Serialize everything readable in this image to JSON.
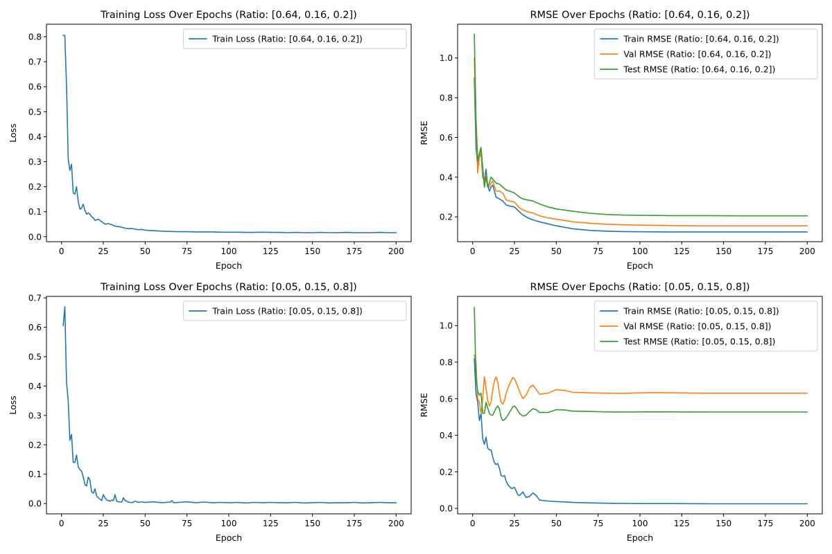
{
  "chart_data": [
    {
      "type": "line",
      "title": "Training Loss Over Epochs (Ratio: [0.64, 0.16, 0.2])",
      "xlabel": "Epoch",
      "ylabel": "Loss",
      "xlim": [
        -9,
        209
      ],
      "ylim": [
        -0.02,
        0.85
      ],
      "xticks": [
        0,
        25,
        50,
        75,
        100,
        125,
        150,
        175,
        200
      ],
      "xtick_labels": [
        "0",
        "25",
        "50",
        "75",
        "100",
        "125",
        "150",
        "175",
        "200"
      ],
      "yticks": [
        0.0,
        0.1,
        0.2,
        0.3,
        0.4,
        0.5,
        0.6,
        0.7,
        0.8
      ],
      "ytick_labels": [
        "0.0",
        "0.1",
        "0.2",
        "0.3",
        "0.4",
        "0.5",
        "0.6",
        "0.7",
        "0.8"
      ],
      "grid": false,
      "legend_position": "upper right",
      "series": [
        {
          "name": "Train Loss (Ratio: [0.64, 0.16, 0.2])",
          "color": "#1f77b4",
          "x": [
            1,
            2,
            3,
            4,
            5,
            6,
            7,
            8,
            9,
            10,
            11,
            12,
            13,
            14,
            15,
            16,
            17,
            18,
            19,
            20,
            22,
            24,
            26,
            28,
            30,
            32,
            34,
            36,
            38,
            40,
            42,
            44,
            46,
            48,
            50,
            55,
            60,
            65,
            70,
            75,
            80,
            85,
            90,
            95,
            100,
            105,
            110,
            115,
            120,
            125,
            130,
            135,
            140,
            145,
            150,
            155,
            160,
            165,
            170,
            175,
            180,
            185,
            190,
            195,
            200
          ],
          "y": [
            0.805,
            0.805,
            0.6,
            0.31,
            0.265,
            0.29,
            0.175,
            0.17,
            0.2,
            0.14,
            0.11,
            0.115,
            0.13,
            0.105,
            0.09,
            0.095,
            0.09,
            0.08,
            0.075,
            0.065,
            0.07,
            0.06,
            0.05,
            0.052,
            0.048,
            0.042,
            0.04,
            0.038,
            0.034,
            0.032,
            0.033,
            0.03,
            0.028,
            0.029,
            0.026,
            0.024,
            0.022,
            0.021,
            0.02,
            0.02,
            0.019,
            0.019,
            0.019,
            0.018,
            0.018,
            0.018,
            0.017,
            0.017,
            0.018,
            0.017,
            0.017,
            0.016,
            0.017,
            0.016,
            0.016,
            0.017,
            0.016,
            0.016,
            0.017,
            0.016,
            0.016,
            0.016,
            0.017,
            0.016,
            0.016
          ]
        }
      ]
    },
    {
      "type": "line",
      "title": "RMSE Over Epochs (Ratio: [0.64, 0.16, 0.2])",
      "xlabel": "Epoch",
      "ylabel": "RMSE",
      "xlim": [
        -9,
        209
      ],
      "ylim": [
        0.075,
        1.17
      ],
      "xticks": [
        0,
        25,
        50,
        75,
        100,
        125,
        150,
        175,
        200
      ],
      "xtick_labels": [
        "0",
        "25",
        "50",
        "75",
        "100",
        "125",
        "150",
        "175",
        "200"
      ],
      "yticks": [
        0.2,
        0.4,
        0.6,
        0.8,
        1.0
      ],
      "ytick_labels": [
        "0.2",
        "0.4",
        "0.6",
        "0.8",
        "1.0"
      ],
      "grid": false,
      "legend_position": "upper right",
      "series": [
        {
          "name": "Train RMSE (Ratio: [0.64, 0.16, 0.2])",
          "color": "#1f77b4",
          "x": [
            1,
            2,
            3,
            4,
            5,
            6,
            7,
            8,
            9,
            10,
            11,
            12,
            14,
            16,
            18,
            20,
            22,
            25,
            28,
            30,
            33,
            36,
            40,
            45,
            50,
            60,
            70,
            80,
            90,
            100,
            120,
            140,
            160,
            180,
            200
          ],
          "y": [
            0.9,
            0.55,
            0.45,
            0.5,
            0.52,
            0.4,
            0.38,
            0.44,
            0.36,
            0.33,
            0.35,
            0.36,
            0.3,
            0.29,
            0.28,
            0.26,
            0.255,
            0.25,
            0.225,
            0.21,
            0.195,
            0.185,
            0.175,
            0.165,
            0.155,
            0.14,
            0.132,
            0.128,
            0.126,
            0.125,
            0.124,
            0.124,
            0.124,
            0.124,
            0.124
          ]
        },
        {
          "name": "Val RMSE (Ratio: [0.64, 0.16, 0.2])",
          "color": "#ff7f0e",
          "x": [
            1,
            2,
            3,
            4,
            5,
            6,
            7,
            8,
            9,
            10,
            11,
            12,
            14,
            16,
            18,
            20,
            22,
            25,
            28,
            30,
            33,
            36,
            40,
            45,
            50,
            60,
            70,
            80,
            90,
            100,
            120,
            140,
            160,
            180,
            200
          ],
          "y": [
            1.0,
            0.65,
            0.42,
            0.5,
            0.53,
            0.41,
            0.37,
            0.41,
            0.36,
            0.35,
            0.37,
            0.38,
            0.33,
            0.33,
            0.32,
            0.285,
            0.28,
            0.275,
            0.245,
            0.235,
            0.225,
            0.22,
            0.205,
            0.195,
            0.188,
            0.175,
            0.168,
            0.163,
            0.16,
            0.158,
            0.156,
            0.155,
            0.155,
            0.155,
            0.155
          ]
        },
        {
          "name": "Test RMSE (Ratio: [0.64, 0.16, 0.2])",
          "color": "#2ca02c",
          "x": [
            1,
            2,
            3,
            4,
            5,
            6,
            7,
            8,
            9,
            10,
            11,
            12,
            14,
            16,
            18,
            20,
            22,
            25,
            28,
            30,
            33,
            36,
            40,
            45,
            50,
            60,
            70,
            80,
            90,
            100,
            120,
            140,
            160,
            180,
            200
          ],
          "y": [
            1.12,
            0.7,
            0.48,
            0.52,
            0.55,
            0.45,
            0.35,
            0.4,
            0.35,
            0.37,
            0.4,
            0.39,
            0.37,
            0.365,
            0.35,
            0.335,
            0.33,
            0.32,
            0.3,
            0.29,
            0.285,
            0.28,
            0.265,
            0.25,
            0.24,
            0.228,
            0.218,
            0.212,
            0.209,
            0.208,
            0.206,
            0.206,
            0.205,
            0.205,
            0.205
          ]
        }
      ]
    },
    {
      "type": "line",
      "title": "Training Loss Over Epochs (Ratio: [0.05, 0.15, 0.8])",
      "xlabel": "Epoch",
      "ylabel": "Loss",
      "xlim": [
        -9,
        209
      ],
      "ylim": [
        -0.035,
        0.705
      ],
      "xticks": [
        0,
        25,
        50,
        75,
        100,
        125,
        150,
        175,
        200
      ],
      "xtick_labels": [
        "0",
        "25",
        "50",
        "75",
        "100",
        "125",
        "150",
        "175",
        "200"
      ],
      "yticks": [
        0.0,
        0.1,
        0.2,
        0.3,
        0.4,
        0.5,
        0.6,
        0.7
      ],
      "ytick_labels": [
        "0.0",
        "0.1",
        "0.2",
        "0.3",
        "0.4",
        "0.5",
        "0.6",
        "0.7"
      ],
      "grid": false,
      "legend_position": "upper right",
      "series": [
        {
          "name": "Train Loss (Ratio: [0.05, 0.15, 0.8])",
          "color": "#1f77b4",
          "x": [
            1,
            2,
            3,
            4,
            5,
            6,
            7,
            8,
            9,
            10,
            11,
            12,
            13,
            14,
            15,
            16,
            17,
            18,
            19,
            20,
            21,
            22,
            23,
            24,
            25,
            26,
            27,
            28,
            29,
            30,
            31,
            32,
            33,
            34,
            35,
            36,
            37,
            38,
            39,
            40,
            42,
            44,
            46,
            48,
            50,
            55,
            60,
            65,
            66,
            67,
            70,
            75,
            80,
            85,
            90,
            95,
            100,
            105,
            110,
            115,
            120,
            125,
            130,
            135,
            140,
            145,
            150,
            155,
            160,
            165,
            170,
            175,
            180,
            185,
            190,
            195,
            200
          ],
          "y": [
            0.605,
            0.67,
            0.41,
            0.35,
            0.215,
            0.235,
            0.14,
            0.14,
            0.165,
            0.125,
            0.115,
            0.11,
            0.09,
            0.065,
            0.06,
            0.09,
            0.08,
            0.04,
            0.035,
            0.05,
            0.025,
            0.02,
            0.015,
            0.01,
            0.03,
            0.02,
            0.012,
            0.01,
            0.008,
            0.012,
            0.01,
            0.03,
            0.008,
            0.006,
            0.005,
            0.005,
            0.02,
            0.01,
            0.008,
            0.005,
            0.003,
            0.008,
            0.004,
            0.006,
            0.004,
            0.006,
            0.003,
            0.005,
            0.01,
            0.003,
            0.004,
            0.006,
            0.003,
            0.005,
            0.003,
            0.004,
            0.003,
            0.004,
            0.002,
            0.004,
            0.003,
            0.004,
            0.003,
            0.003,
            0.004,
            0.002,
            0.003,
            0.004,
            0.002,
            0.003,
            0.003,
            0.004,
            0.002,
            0.003,
            0.004,
            0.003,
            0.003
          ]
        }
      ]
    },
    {
      "type": "line",
      "title": "RMSE Over Epochs (Ratio: [0.05, 0.15, 0.8])",
      "xlabel": "Epoch",
      "ylabel": "RMSE",
      "xlim": [
        -9,
        209
      ],
      "ylim": [
        -0.03,
        1.16
      ],
      "xticks": [
        0,
        25,
        50,
        75,
        100,
        125,
        150,
        175,
        200
      ],
      "xtick_labels": [
        "0",
        "25",
        "50",
        "75",
        "100",
        "125",
        "150",
        "175",
        "200"
      ],
      "yticks": [
        0.0,
        0.2,
        0.4,
        0.6,
        0.8,
        1.0
      ],
      "ytick_labels": [
        "0.0",
        "0.2",
        "0.4",
        "0.6",
        "0.8",
        "1.0"
      ],
      "grid": false,
      "legend_position": "upper right",
      "series": [
        {
          "name": "Train RMSE (Ratio: [0.05, 0.15, 0.8])",
          "color": "#1f77b4",
          "x": [
            1,
            2,
            3,
            4,
            5,
            6,
            7,
            8,
            9,
            10,
            11,
            12,
            13,
            14,
            15,
            16,
            17,
            18,
            19,
            20,
            21,
            22,
            23,
            24,
            25,
            26,
            27,
            28,
            29,
            30,
            32,
            34,
            36,
            38,
            40,
            45,
            50,
            55,
            60,
            70,
            80,
            90,
            100,
            120,
            140,
            160,
            180,
            200
          ],
          "y": [
            0.82,
            0.63,
            0.58,
            0.48,
            0.52,
            0.38,
            0.35,
            0.39,
            0.33,
            0.32,
            0.32,
            0.28,
            0.25,
            0.24,
            0.245,
            0.22,
            0.18,
            0.175,
            0.18,
            0.15,
            0.13,
            0.12,
            0.11,
            0.11,
            0.115,
            0.095,
            0.075,
            0.07,
            0.08,
            0.09,
            0.06,
            0.065,
            0.085,
            0.07,
            0.045,
            0.04,
            0.037,
            0.035,
            0.032,
            0.03,
            0.028,
            0.027,
            0.026,
            0.026,
            0.025,
            0.025,
            0.025,
            0.025
          ]
        },
        {
          "name": "Val RMSE (Ratio: [0.05, 0.15, 0.8])",
          "color": "#ff7f0e",
          "x": [
            1,
            2,
            3,
            4,
            5,
            6,
            7,
            8,
            9,
            10,
            11,
            12,
            13,
            14,
            15,
            16,
            17,
            18,
            19,
            20,
            22,
            24,
            25,
            26,
            28,
            30,
            32,
            34,
            36,
            38,
            40,
            45,
            50,
            55,
            60,
            70,
            80,
            90,
            100,
            110,
            120,
            140,
            160,
            180,
            200
          ],
          "y": [
            0.84,
            0.8,
            0.6,
            0.58,
            0.52,
            0.6,
            0.72,
            0.66,
            0.59,
            0.56,
            0.58,
            0.65,
            0.7,
            0.72,
            0.69,
            0.63,
            0.58,
            0.57,
            0.59,
            0.63,
            0.68,
            0.715,
            0.71,
            0.69,
            0.64,
            0.6,
            0.62,
            0.66,
            0.675,
            0.65,
            0.625,
            0.63,
            0.65,
            0.645,
            0.635,
            0.632,
            0.63,
            0.629,
            0.632,
            0.633,
            0.632,
            0.63,
            0.63,
            0.63,
            0.63
          ]
        },
        {
          "name": "Test RMSE (Ratio: [0.05, 0.15, 0.8])",
          "color": "#2ca02c",
          "x": [
            1,
            2,
            3,
            4,
            5,
            6,
            7,
            8,
            9,
            10,
            11,
            12,
            13,
            14,
            15,
            16,
            17,
            18,
            19,
            20,
            22,
            24,
            25,
            26,
            28,
            30,
            32,
            34,
            36,
            38,
            40,
            45,
            50,
            55,
            60,
            70,
            80,
            90,
            100,
            120,
            140,
            160,
            180,
            200
          ],
          "y": [
            1.1,
            0.72,
            0.64,
            0.62,
            0.63,
            0.52,
            0.52,
            0.58,
            0.55,
            0.52,
            0.51,
            0.51,
            0.53,
            0.55,
            0.56,
            0.545,
            0.5,
            0.48,
            0.485,
            0.495,
            0.525,
            0.555,
            0.56,
            0.55,
            0.52,
            0.505,
            0.51,
            0.53,
            0.545,
            0.54,
            0.525,
            0.525,
            0.54,
            0.538,
            0.532,
            0.53,
            0.528,
            0.527,
            0.528,
            0.528,
            0.527,
            0.527,
            0.527,
            0.527
          ]
        }
      ]
    }
  ]
}
